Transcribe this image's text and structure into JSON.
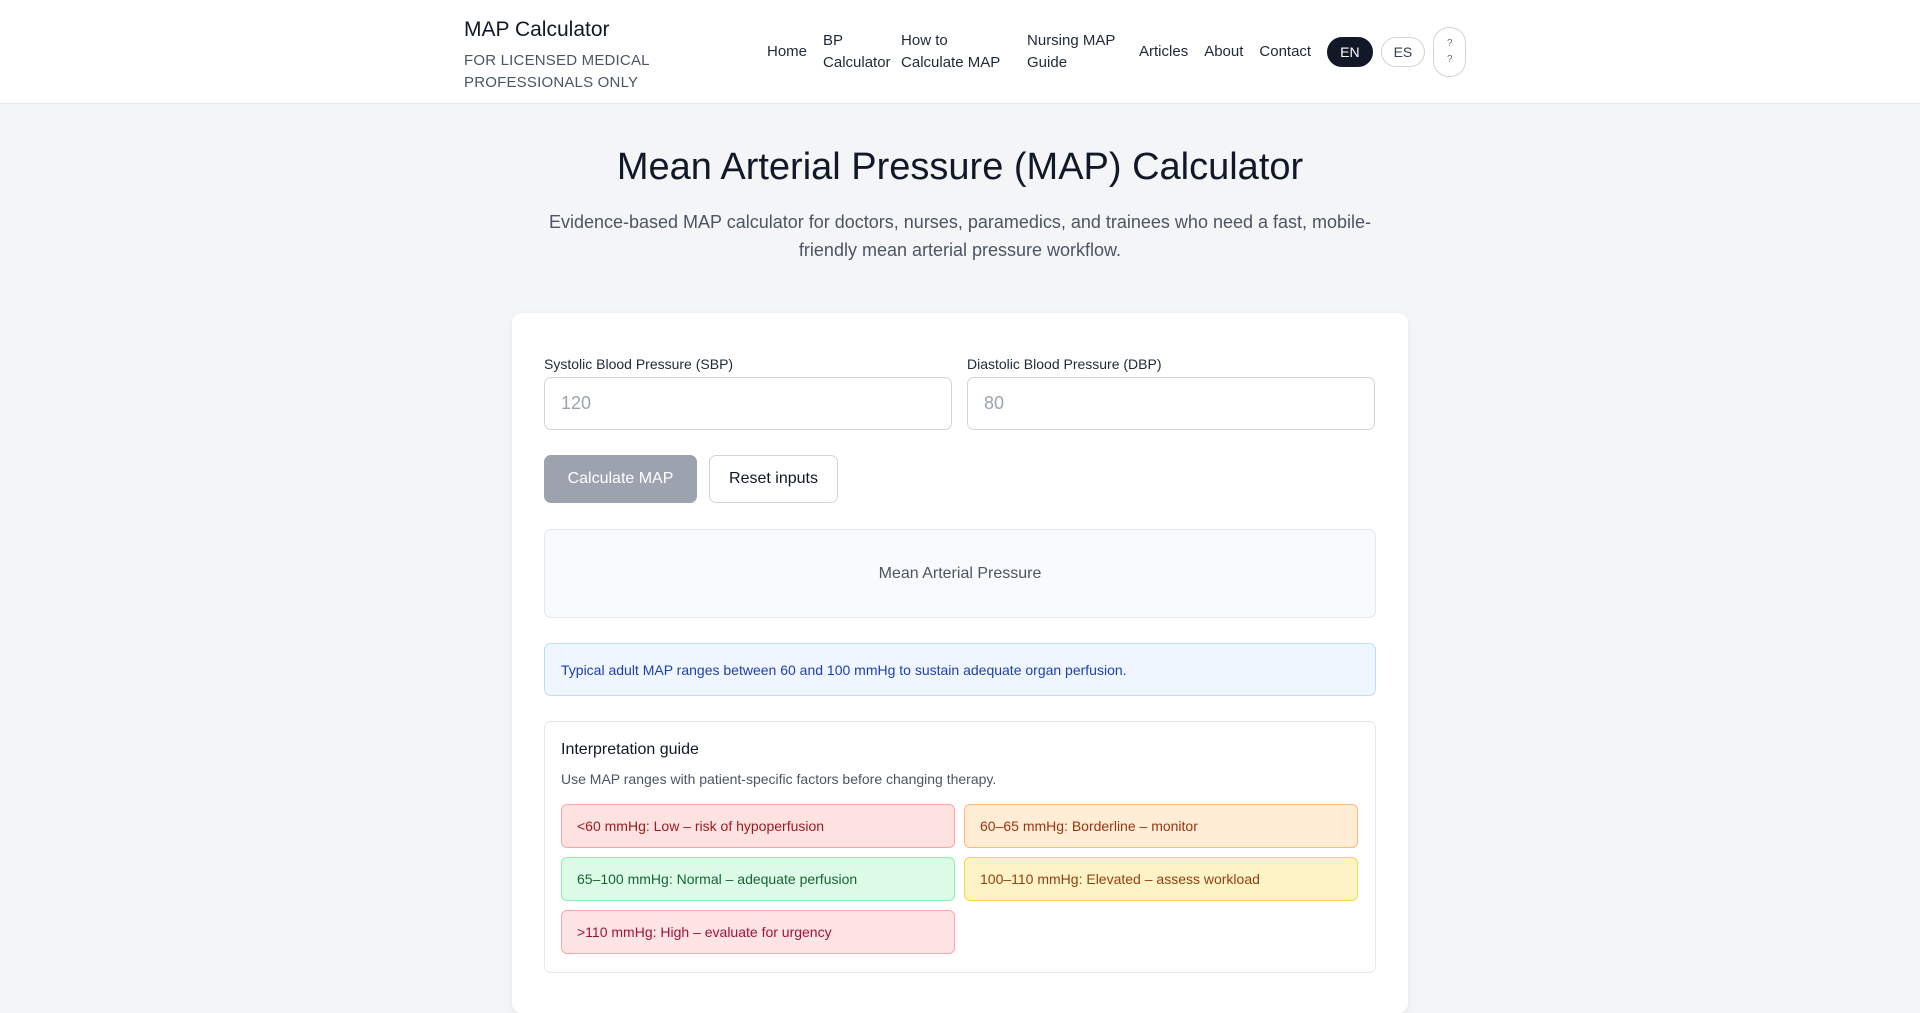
{
  "header": {
    "brand_title": "MAP Calculator",
    "brand_subtitle": "FOR LICENSED MEDICAL PROFESSIONALS ONLY",
    "nav": [
      "Home",
      "BP Calculator",
      "How to Calculate MAP",
      "Nursing MAP Guide",
      "Articles",
      "About",
      "Contact"
    ],
    "languages": [
      "EN",
      "ES"
    ],
    "active_language": "EN",
    "theme_toggle": [
      "?",
      "?"
    ]
  },
  "hero": {
    "title": "Mean Arterial Pressure (MAP) Calculator",
    "subtitle": "Evidence-based MAP calculator for doctors, nurses, paramedics, and trainees who need a fast, mobile-friendly mean arterial pressure workflow."
  },
  "form": {
    "sbp_label": "Systolic Blood Pressure (SBP)",
    "sbp_placeholder": "120",
    "sbp_value": "",
    "dbp_label": "Diastolic Blood Pressure (DBP)",
    "dbp_placeholder": "80",
    "dbp_value": "",
    "calculate_label": "Calculate MAP",
    "reset_label": "Reset inputs"
  },
  "result": {
    "label": "Mean Arterial Pressure"
  },
  "info": "Typical adult MAP ranges between 60 and 100 mmHg to sustain adequate organ perfusion.",
  "guide": {
    "title": "Interpretation guide",
    "description": "Use MAP ranges with patient-specific factors before changing therapy.",
    "ranges": [
      {
        "text": "<60 mmHg: Low – risk of hypoperfusion",
        "bg": "#fee2e2",
        "border": "#fca5a5",
        "color": "#991b1b"
      },
      {
        "text": "60–65 mmHg: Borderline – monitor",
        "bg": "#ffedd5",
        "border": "#fdba74",
        "color": "#9a3412"
      },
      {
        "text": "65–100 mmHg: Normal – adequate perfusion",
        "bg": "#dcfce7",
        "border": "#86efac",
        "color": "#166534"
      },
      {
        "text": "100–110 mmHg: Elevated – assess workload",
        "bg": "#fef3c7",
        "border": "#fcd34d",
        "color": "#92400e"
      },
      {
        "text": ">110 mmHg: High – evaluate for urgency",
        "bg": "#ffe4e6",
        "border": "#fda4af",
        "color": "#9f1239"
      }
    ]
  }
}
